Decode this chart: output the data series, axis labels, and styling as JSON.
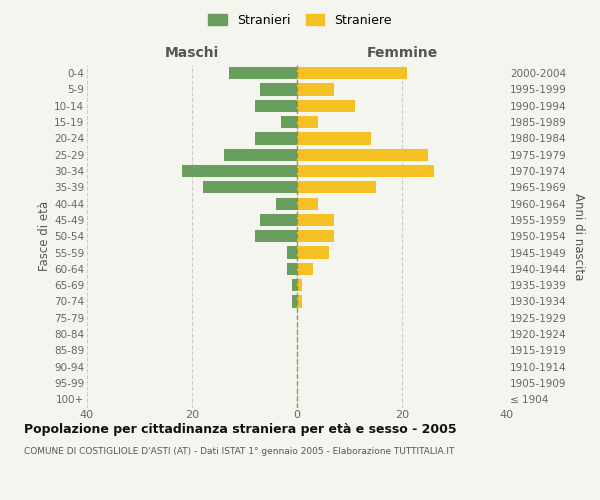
{
  "age_groups": [
    "100+",
    "95-99",
    "90-94",
    "85-89",
    "80-84",
    "75-79",
    "70-74",
    "65-69",
    "60-64",
    "55-59",
    "50-54",
    "45-49",
    "40-44",
    "35-39",
    "30-34",
    "25-29",
    "20-24",
    "15-19",
    "10-14",
    "5-9",
    "0-4"
  ],
  "birth_years": [
    "≤ 1904",
    "1905-1909",
    "1910-1914",
    "1915-1919",
    "1920-1924",
    "1925-1929",
    "1930-1934",
    "1935-1939",
    "1940-1944",
    "1945-1949",
    "1950-1954",
    "1955-1959",
    "1960-1964",
    "1965-1969",
    "1970-1974",
    "1975-1979",
    "1980-1984",
    "1985-1989",
    "1990-1994",
    "1995-1999",
    "2000-2004"
  ],
  "maschi": [
    0,
    0,
    0,
    0,
    0,
    0,
    1,
    1,
    2,
    2,
    8,
    7,
    4,
    18,
    22,
    14,
    8,
    3,
    8,
    7,
    13
  ],
  "femmine": [
    0,
    0,
    0,
    0,
    0,
    0,
    1,
    1,
    3,
    6,
    7,
    7,
    4,
    15,
    26,
    25,
    14,
    4,
    11,
    7,
    21
  ],
  "male_color": "#6a9e5f",
  "female_color": "#f5c024",
  "bg_color": "#f5f5f0",
  "grid_color": "#cccccc",
  "title": "Popolazione per cittadinanza straniera per età e sesso - 2005",
  "subtitle": "COMUNE DI COSTIGLIOLE D'ASTI (AT) - Dati ISTAT 1° gennaio 2005 - Elaborazione TUTTITALIA.IT",
  "xlabel_left": "Maschi",
  "xlabel_right": "Femmine",
  "ylabel_left": "Fasce di età",
  "ylabel_right": "Anni di nascita",
  "legend_stranieri": "Stranieri",
  "legend_straniere": "Straniere",
  "xlim": 40,
  "bar_height": 0.75
}
